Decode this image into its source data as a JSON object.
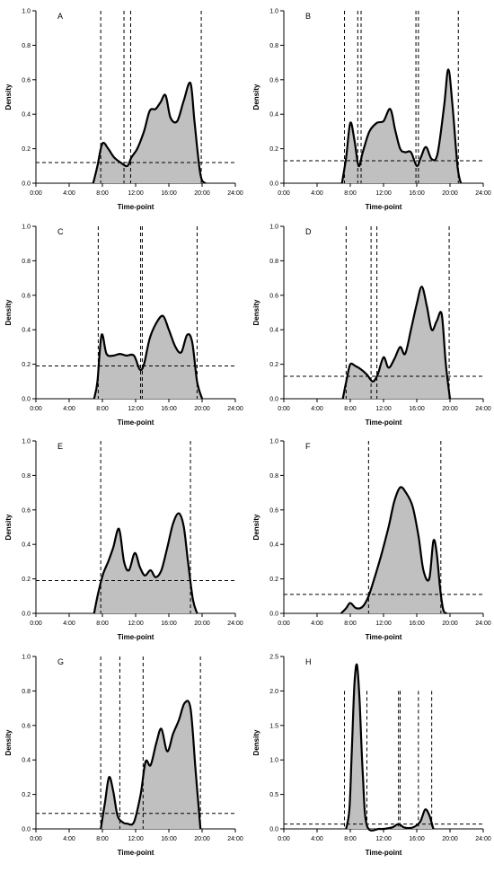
{
  "chart_data": [
    {
      "type": "area",
      "panel_label": "A",
      "xlabel": "Time-point",
      "ylabel": "Density",
      "xlim": [
        0,
        24
      ],
      "ylim": [
        0,
        1.0
      ],
      "x_ticks": [
        "0:00",
        "4:00",
        "8:00",
        "12:00",
        "16:00",
        "20:00",
        "24:00"
      ],
      "y_ticks": [
        "0.0",
        "0.2",
        "0.4",
        "0.6",
        "0.8",
        "1.0"
      ],
      "series": [
        {
          "x": [
            6.9,
            7.4,
            8.0,
            8.7,
            9.4,
            10.2,
            11.0,
            11.5,
            12.2,
            13.0,
            13.7,
            14.4,
            15.0,
            15.6,
            16.2,
            17.0,
            17.8,
            18.6,
            19.1,
            19.8,
            20.4
          ],
          "values": [
            0.0,
            0.1,
            0.23,
            0.2,
            0.15,
            0.12,
            0.1,
            0.15,
            0.2,
            0.3,
            0.42,
            0.43,
            0.47,
            0.51,
            0.38,
            0.36,
            0.48,
            0.58,
            0.35,
            0.05,
            0.0
          ]
        }
      ],
      "vlines": [
        7.8,
        10.6,
        11.4,
        19.9
      ],
      "hline": 0.12
    },
    {
      "type": "area",
      "panel_label": "B",
      "xlabel": "Time-point",
      "ylabel": "Density",
      "xlim": [
        0,
        24
      ],
      "ylim": [
        0,
        1.0
      ],
      "x_ticks": [
        "0:00",
        "4:00",
        "8:00",
        "12:00",
        "16:00",
        "20:00",
        "24:00"
      ],
      "y_ticks": [
        "0.0",
        "0.2",
        "0.4",
        "0.6",
        "0.8",
        "1.0"
      ],
      "series": [
        {
          "x": [
            7.0,
            7.5,
            8.0,
            8.5,
            9.0,
            9.5,
            10.3,
            11.2,
            12.0,
            12.8,
            13.4,
            14.0,
            14.6,
            15.3,
            16.0,
            16.5,
            17.1,
            17.8,
            18.5,
            19.3,
            19.8,
            20.3,
            20.9,
            21.3
          ],
          "values": [
            0.0,
            0.15,
            0.35,
            0.25,
            0.1,
            0.18,
            0.3,
            0.35,
            0.36,
            0.43,
            0.31,
            0.2,
            0.18,
            0.18,
            0.1,
            0.15,
            0.21,
            0.14,
            0.17,
            0.45,
            0.66,
            0.45,
            0.1,
            0.0
          ]
        }
      ],
      "vlines": [
        7.3,
        8.9,
        9.3,
        15.9,
        16.2,
        21.0
      ],
      "hline": 0.13
    },
    {
      "type": "area",
      "panel_label": "C",
      "xlabel": "Time-point",
      "ylabel": "Density",
      "xlim": [
        0,
        24
      ],
      "ylim": [
        0,
        1.0
      ],
      "x_ticks": [
        "0:00",
        "4:00",
        "8:00",
        "12:00",
        "16:00",
        "20:00",
        "24:00"
      ],
      "y_ticks": [
        "0.0",
        "0.2",
        "0.4",
        "0.6",
        "0.8",
        "1.0"
      ],
      "series": [
        {
          "x": [
            7.0,
            7.4,
            7.9,
            8.5,
            9.3,
            10.1,
            10.9,
            11.8,
            12.5,
            13.0,
            13.7,
            14.5,
            15.3,
            16.0,
            16.8,
            17.5,
            18.2,
            18.8,
            19.4,
            20.0
          ],
          "values": [
            0.0,
            0.1,
            0.37,
            0.26,
            0.25,
            0.26,
            0.25,
            0.25,
            0.17,
            0.2,
            0.35,
            0.44,
            0.48,
            0.4,
            0.3,
            0.27,
            0.37,
            0.33,
            0.1,
            0.0
          ]
        }
      ],
      "vlines": [
        7.5,
        12.6,
        12.8,
        19.4
      ],
      "hline": 0.19
    },
    {
      "type": "area",
      "panel_label": "D",
      "xlabel": "Time-point",
      "ylabel": "Density",
      "xlim": [
        0,
        24
      ],
      "ylim": [
        0,
        1.0
      ],
      "x_ticks": [
        "0:00",
        "4:00",
        "8:00",
        "12:00",
        "16:00",
        "20:00",
        "24:00"
      ],
      "y_ticks": [
        "0.0",
        "0.2",
        "0.4",
        "0.6",
        "0.8",
        "1.0"
      ],
      "series": [
        {
          "x": [
            7.1,
            7.6,
            8.0,
            8.6,
            9.3,
            10.0,
            10.7,
            11.3,
            12.0,
            12.6,
            13.3,
            14.0,
            14.6,
            15.3,
            16.0,
            16.6,
            17.2,
            17.8,
            18.4,
            19.0,
            19.5,
            20.0
          ],
          "values": [
            0.0,
            0.12,
            0.2,
            0.19,
            0.17,
            0.14,
            0.1,
            0.14,
            0.24,
            0.18,
            0.23,
            0.3,
            0.26,
            0.4,
            0.55,
            0.65,
            0.54,
            0.4,
            0.45,
            0.49,
            0.2,
            0.0
          ]
        }
      ],
      "vlines": [
        7.5,
        10.5,
        11.2,
        19.9
      ],
      "hline": 0.13
    },
    {
      "type": "area",
      "panel_label": "E",
      "xlabel": "Time-point",
      "ylabel": "Density",
      "xlim": [
        0,
        24
      ],
      "ylim": [
        0,
        1.0
      ],
      "x_ticks": [
        "0:00",
        "4:00",
        "8:00",
        "12:00",
        "16:00",
        "20:00",
        "24:00"
      ],
      "y_ticks": [
        "0.0",
        "0.2",
        "0.4",
        "0.6",
        "0.8",
        "1.0"
      ],
      "series": [
        {
          "x": [
            7.0,
            7.5,
            8.1,
            8.7,
            9.3,
            10.0,
            10.6,
            11.2,
            11.9,
            12.5,
            13.1,
            13.8,
            14.4,
            15.1,
            15.8,
            16.5,
            17.2,
            17.8,
            18.3,
            18.9,
            19.4
          ],
          "values": [
            0.0,
            0.12,
            0.23,
            0.3,
            0.38,
            0.49,
            0.3,
            0.25,
            0.35,
            0.27,
            0.22,
            0.25,
            0.21,
            0.25,
            0.38,
            0.52,
            0.58,
            0.5,
            0.3,
            0.08,
            0.0
          ]
        }
      ],
      "vlines": [
        7.8,
        18.6
      ],
      "hline": 0.19
    },
    {
      "type": "area",
      "panel_label": "F",
      "xlabel": "Time-point",
      "ylabel": "Density",
      "xlim": [
        0,
        24
      ],
      "ylim": [
        0,
        1.0
      ],
      "x_ticks": [
        "0:00",
        "4:00",
        "8:00",
        "12:00",
        "16:00",
        "20:00",
        "24:00"
      ],
      "y_ticks": [
        "0.0",
        "0.2",
        "0.4",
        "0.6",
        "0.8",
        "1.0"
      ],
      "series": [
        {
          "x": [
            6.9,
            7.5,
            8.0,
            8.7,
            9.5,
            10.2,
            11.0,
            11.8,
            12.6,
            13.3,
            14.0,
            14.7,
            15.5,
            16.2,
            16.8,
            17.5,
            18.0,
            18.4,
            18.8,
            19.2,
            19.6
          ],
          "values": [
            0.0,
            0.03,
            0.06,
            0.03,
            0.04,
            0.1,
            0.22,
            0.35,
            0.5,
            0.65,
            0.73,
            0.7,
            0.62,
            0.45,
            0.25,
            0.2,
            0.42,
            0.35,
            0.15,
            0.02,
            0.0
          ]
        }
      ],
      "vlines": [
        10.2,
        18.9
      ],
      "hline": 0.11
    },
    {
      "type": "area",
      "panel_label": "G",
      "xlabel": "Time-point",
      "ylabel": "Density",
      "xlim": [
        0,
        24
      ],
      "ylim": [
        0,
        1.0
      ],
      "x_ticks": [
        "0:00",
        "4:00",
        "8:00",
        "12:00",
        "16:00",
        "20:00",
        "24:00"
      ],
      "y_ticks": [
        "0.0",
        "0.2",
        "0.4",
        "0.6",
        "0.8",
        "1.0"
      ],
      "series": [
        {
          "x": [
            7.8,
            8.3,
            8.8,
            9.3,
            9.8,
            10.4,
            11.0,
            11.8,
            12.6,
            13.2,
            13.8,
            14.5,
            15.1,
            15.8,
            16.5,
            17.2,
            17.9,
            18.6,
            19.2,
            19.8
          ],
          "values": [
            0.0,
            0.15,
            0.3,
            0.22,
            0.08,
            0.04,
            0.03,
            0.04,
            0.2,
            0.39,
            0.37,
            0.5,
            0.58,
            0.45,
            0.55,
            0.63,
            0.73,
            0.7,
            0.35,
            0.0
          ]
        }
      ],
      "vlines": [
        7.8,
        10.1,
        12.9,
        19.8
      ],
      "hline": 0.09
    },
    {
      "type": "area",
      "panel_label": "H",
      "xlabel": "Time-point",
      "ylabel": "Density",
      "xlim": [
        0,
        24
      ],
      "ylim": [
        0,
        2.5
      ],
      "x_ticks": [
        "0:00",
        "4:00",
        "8:00",
        "12:00",
        "16:00",
        "20:00",
        "24:00"
      ],
      "y_ticks": [
        "0.0",
        "0.5",
        "1.0",
        "1.5",
        "2.0",
        "2.5"
      ],
      "series": [
        {
          "x": [
            7.5,
            7.9,
            8.2,
            8.5,
            8.8,
            9.1,
            9.5,
            10.0,
            11.5,
            13.0,
            13.8,
            14.5,
            15.5,
            16.4,
            17.0,
            17.5,
            18.0
          ],
          "values": [
            0.0,
            0.3,
            1.2,
            2.1,
            2.38,
            1.9,
            0.8,
            0.05,
            0.0,
            0.02,
            0.07,
            0.02,
            0.02,
            0.1,
            0.28,
            0.2,
            0.0
          ]
        }
      ],
      "vlines": [
        7.3,
        10.0,
        13.8,
        14.0,
        16.2,
        17.8
      ],
      "vline_top": 2.0,
      "hline": 0.07
    }
  ]
}
